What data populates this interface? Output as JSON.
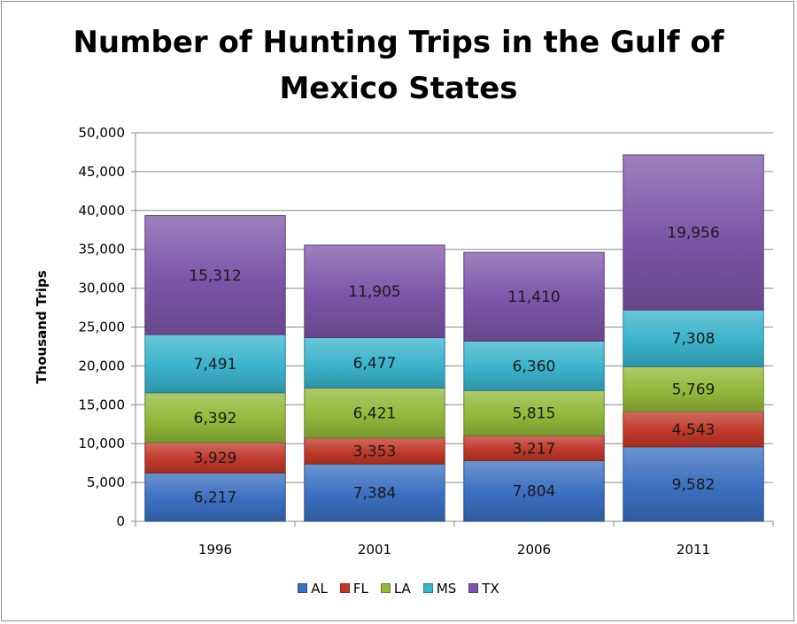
{
  "chart_data": {
    "type": "bar",
    "stacked": true,
    "title_lines": [
      "Number of Hunting Trips in the Gulf of",
      "Mexico States"
    ],
    "xlabel": "",
    "ylabel": "Thousand Trips",
    "ylim": [
      0,
      50000
    ],
    "yticks": [
      0,
      5000,
      10000,
      15000,
      20000,
      25000,
      30000,
      35000,
      40000,
      45000,
      50000
    ],
    "ytick_labels": [
      "0",
      "5,000",
      "10,000",
      "15,000",
      "20,000",
      "25,000",
      "30,000",
      "35,000",
      "40,000",
      "45,000",
      "50,000"
    ],
    "grid": true,
    "legend_position": "bottom",
    "categories": [
      "1996",
      "2001",
      "2006",
      "2011"
    ],
    "series": [
      {
        "name": "AL",
        "color": "#3b6fc0",
        "values": [
          6217,
          7384,
          7804,
          9582
        ],
        "labels": [
          "6,217",
          "7,384",
          "7,804",
          "9,582"
        ]
      },
      {
        "name": "FL",
        "color": "#c0392b",
        "values": [
          3929,
          3353,
          3217,
          4543
        ],
        "labels": [
          "3,929",
          "3,353",
          "3,217",
          "4,543"
        ]
      },
      {
        "name": "LA",
        "color": "#93b83a",
        "values": [
          6392,
          6421,
          5815,
          5769
        ],
        "labels": [
          "6,392",
          "6,421",
          "5,815",
          "5,769"
        ]
      },
      {
        "name": "MS",
        "color": "#3ab3cc",
        "values": [
          7491,
          6477,
          6360,
          7308
        ],
        "labels": [
          "7,491",
          "6,477",
          "6,360",
          "7,308"
        ]
      },
      {
        "name": "TX",
        "color": "#7d55a8",
        "values": [
          15312,
          11905,
          11410,
          19956
        ],
        "labels": [
          "15,312",
          "11,905",
          "11,410",
          "19,956"
        ]
      }
    ]
  }
}
